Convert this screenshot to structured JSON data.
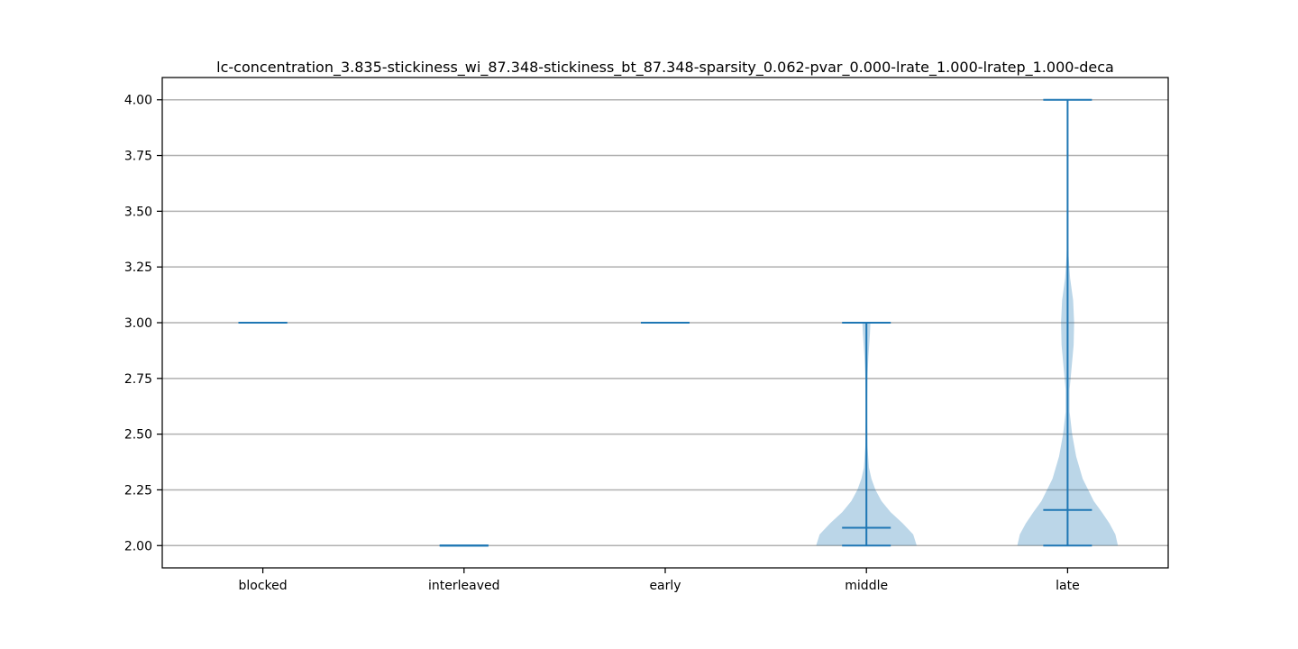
{
  "chart_data": {
    "type": "violin",
    "title": "lc-concentration_3.835-stickiness_wi_87.348-stickiness_bt_87.348-sparsity_0.062-pvar_0.000-lrate_1.000-lratep_1.000-deca",
    "xlabel": "",
    "ylabel": "",
    "categories": [
      "blocked",
      "interleaved",
      "early",
      "middle",
      "late"
    ],
    "ylim": [
      1.9,
      4.1
    ],
    "yticks": [
      2.0,
      2.25,
      2.5,
      2.75,
      3.0,
      3.25,
      3.5,
      3.75,
      4.0
    ],
    "ytick_labels": [
      "2.00",
      "2.25",
      "2.50",
      "2.75",
      "3.00",
      "3.25",
      "3.50",
      "3.75",
      "4.00"
    ],
    "grid": "horizontal",
    "colors": {
      "line": "#1f77b4",
      "body": "#1f77b4",
      "grid": "#b0b0b0"
    },
    "violins": [
      {
        "category": "blocked",
        "min": 3.0,
        "max": 3.0,
        "mean": 3.0,
        "density": []
      },
      {
        "category": "interleaved",
        "min": 2.0,
        "max": 2.0,
        "mean": 2.0,
        "density": []
      },
      {
        "category": "early",
        "min": 3.0,
        "max": 3.0,
        "mean": 3.0,
        "density": []
      },
      {
        "category": "middle",
        "min": 2.0,
        "max": 3.0,
        "mean": 2.08,
        "density": [
          [
            2.0,
            1.0
          ],
          [
            2.05,
            0.93
          ],
          [
            2.1,
            0.72
          ],
          [
            2.15,
            0.48
          ],
          [
            2.2,
            0.3
          ],
          [
            2.25,
            0.18
          ],
          [
            2.3,
            0.1
          ],
          [
            2.35,
            0.05
          ],
          [
            2.45,
            0.02
          ],
          [
            2.6,
            0.01
          ],
          [
            2.75,
            0.02
          ],
          [
            2.85,
            0.04
          ],
          [
            2.95,
            0.07
          ],
          [
            3.0,
            0.08
          ]
        ]
      },
      {
        "category": "late",
        "min": 2.0,
        "max": 4.0,
        "mean": 2.16,
        "density": [
          [
            2.0,
            1.0
          ],
          [
            2.05,
            0.95
          ],
          [
            2.1,
            0.83
          ],
          [
            2.15,
            0.68
          ],
          [
            2.2,
            0.52
          ],
          [
            2.3,
            0.3
          ],
          [
            2.4,
            0.17
          ],
          [
            2.5,
            0.09
          ],
          [
            2.6,
            0.04
          ],
          [
            2.7,
            0.04
          ],
          [
            2.8,
            0.08
          ],
          [
            2.9,
            0.12
          ],
          [
            3.0,
            0.13
          ],
          [
            3.1,
            0.11
          ],
          [
            3.2,
            0.05
          ],
          [
            3.3,
            0.02
          ],
          [
            3.4,
            0.005
          ],
          [
            3.6,
            0.001
          ],
          [
            3.8,
            0.0005
          ],
          [
            4.0,
            0.0
          ]
        ]
      }
    ]
  }
}
